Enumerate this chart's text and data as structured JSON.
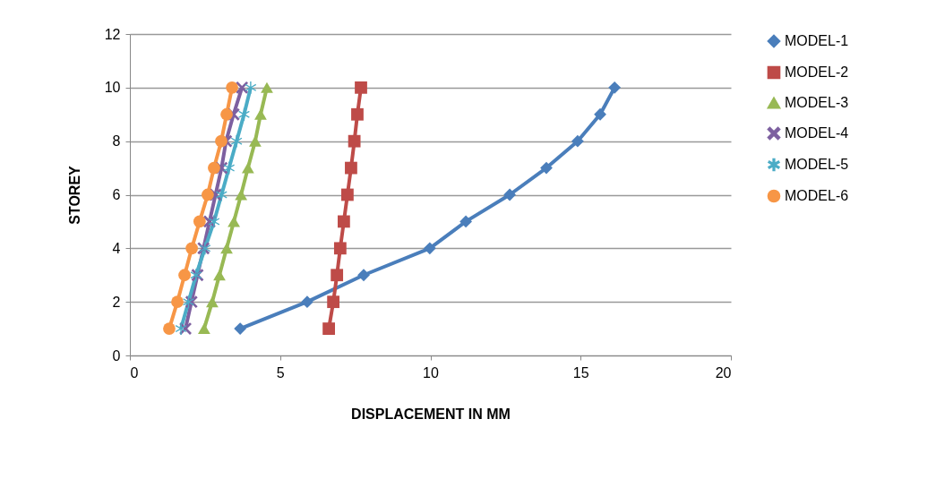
{
  "chart_data": {
    "type": "line",
    "xlabel": "DISPLACEMENT IN MM",
    "ylabel": "STOREY",
    "xlim": [
      0,
      20
    ],
    "xticks": [
      0,
      5,
      10,
      15,
      20
    ],
    "ylim": [
      0,
      12
    ],
    "yticks": [
      0,
      2,
      4,
      6,
      8,
      10,
      12
    ],
    "grid": "y",
    "legend": "right",
    "line_style": "solid",
    "series": [
      {
        "name": "MODEL-1",
        "color": "#4a7ebb",
        "marker": "diamond",
        "x": [
          3.67,
          5.9,
          7.78,
          9.98,
          11.18,
          12.64,
          13.86,
          14.9,
          15.65,
          16.13
        ],
        "values": [
          1,
          2,
          3,
          4,
          5,
          6,
          7,
          8,
          9,
          10
        ]
      },
      {
        "name": "MODEL-2",
        "color": "#be4b48",
        "marker": "square",
        "x": [
          6.62,
          6.77,
          6.89,
          7.0,
          7.12,
          7.24,
          7.36,
          7.47,
          7.57,
          7.69
        ],
        "values": [
          1,
          2,
          3,
          4,
          5,
          6,
          7,
          8,
          9,
          10
        ]
      },
      {
        "name": "MODEL-3",
        "color": "#98b954",
        "marker": "triangle",
        "x": [
          2.47,
          2.74,
          2.98,
          3.22,
          3.46,
          3.7,
          3.93,
          4.17,
          4.35,
          4.56
        ],
        "values": [
          1,
          2,
          3,
          4,
          5,
          6,
          7,
          8,
          9,
          10
        ]
      },
      {
        "name": "MODEL-4",
        "color": "#7d60a0",
        "marker": "cross",
        "x": [
          1.85,
          2.05,
          2.25,
          2.45,
          2.65,
          2.85,
          3.05,
          3.2,
          3.45,
          3.73
        ],
        "values": [
          1,
          2,
          3,
          4,
          5,
          6,
          7,
          8,
          9,
          10
        ]
      },
      {
        "name": "MODEL-5",
        "color": "#4bacc6",
        "marker": "star",
        "x": [
          1.7,
          1.95,
          2.2,
          2.5,
          2.8,
          3.05,
          3.3,
          3.55,
          3.8,
          4.02
        ],
        "values": [
          1,
          2,
          3,
          4,
          5,
          6,
          7,
          8,
          9,
          10
        ]
      },
      {
        "name": "MODEL-6",
        "color": "#f79646",
        "marker": "circle",
        "x": [
          1.31,
          1.58,
          1.82,
          2.06,
          2.32,
          2.59,
          2.8,
          3.04,
          3.22,
          3.4
        ],
        "values": [
          1,
          2,
          3,
          4,
          5,
          6,
          7,
          8,
          9,
          10
        ]
      }
    ]
  }
}
